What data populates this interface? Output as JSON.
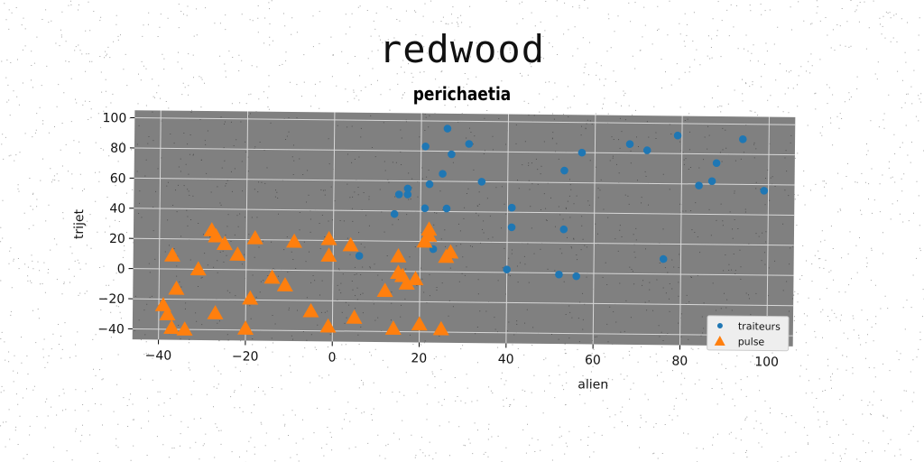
{
  "chart_data": {
    "type": "scatter",
    "title": "redwood",
    "subtitle": "perichaetia",
    "xlabel": "alien",
    "ylabel": "trijet",
    "xlim": [
      -46,
      106
    ],
    "ylim": [
      -47,
      105
    ],
    "xticks": [
      -40,
      -20,
      0,
      20,
      40,
      60,
      80,
      100
    ],
    "yticks": [
      -40,
      -20,
      0,
      20,
      40,
      60,
      80,
      100
    ],
    "xtick_labels": [
      "−40",
      "−20",
      "0",
      "20",
      "40",
      "60",
      "80",
      "100"
    ],
    "ytick_labels": [
      "−40",
      "−20",
      "0",
      "20",
      "40",
      "60",
      "80",
      "100"
    ],
    "grid": true,
    "legend_position": "lower-right",
    "series": [
      {
        "name": "traiteurs",
        "color": "#1f77b4",
        "marker": "circle",
        "points": [
          [
            6,
            10
          ],
          [
            14,
            38
          ],
          [
            15,
            51
          ],
          [
            17,
            51
          ],
          [
            17,
            55
          ],
          [
            21,
            42
          ],
          [
            21,
            83
          ],
          [
            22,
            58
          ],
          [
            23,
            15
          ],
          [
            25,
            65
          ],
          [
            26,
            42
          ],
          [
            26,
            95
          ],
          [
            27,
            78
          ],
          [
            31,
            85
          ],
          [
            34,
            60
          ],
          [
            40,
            2
          ],
          [
            41,
            43
          ],
          [
            41,
            30
          ],
          [
            52,
            -1
          ],
          [
            53,
            68
          ],
          [
            53,
            29
          ],
          [
            56,
            -2
          ],
          [
            57,
            80
          ],
          [
            68,
            86
          ],
          [
            72,
            82
          ],
          [
            76,
            10
          ],
          [
            79,
            92
          ],
          [
            84,
            59
          ],
          [
            87,
            62
          ],
          [
            88,
            74
          ],
          [
            94,
            90
          ],
          [
            99,
            56
          ]
        ]
      },
      {
        "name": "pulse",
        "color": "#ff7f0e",
        "marker": "triangle",
        "points": [
          [
            -39,
            -24
          ],
          [
            -38,
            -30
          ],
          [
            -37,
            -39
          ],
          [
            -37,
            9
          ],
          [
            -36,
            -13
          ],
          [
            -34,
            -40
          ],
          [
            -31,
            0
          ],
          [
            -28,
            26
          ],
          [
            -27,
            -29
          ],
          [
            -27,
            22
          ],
          [
            -25,
            17
          ],
          [
            -22,
            10
          ],
          [
            -20,
            -39
          ],
          [
            -19,
            -19
          ],
          [
            -18,
            21
          ],
          [
            -14,
            -5
          ],
          [
            -11,
            -10
          ],
          [
            -9,
            19
          ],
          [
            -5,
            -27
          ],
          [
            -1,
            -37
          ],
          [
            -1,
            21
          ],
          [
            -1,
            10
          ],
          [
            4,
            17
          ],
          [
            5,
            -31
          ],
          [
            12,
            -13
          ],
          [
            14,
            -38
          ],
          [
            15,
            10
          ],
          [
            15,
            -1
          ],
          [
            16,
            -3
          ],
          [
            17,
            -8
          ],
          [
            19,
            -5
          ],
          [
            20,
            -35
          ],
          [
            21,
            20
          ],
          [
            22,
            28
          ],
          [
            22,
            24
          ],
          [
            25,
            -38
          ],
          [
            26,
            10
          ],
          [
            27,
            13
          ]
        ]
      }
    ]
  }
}
